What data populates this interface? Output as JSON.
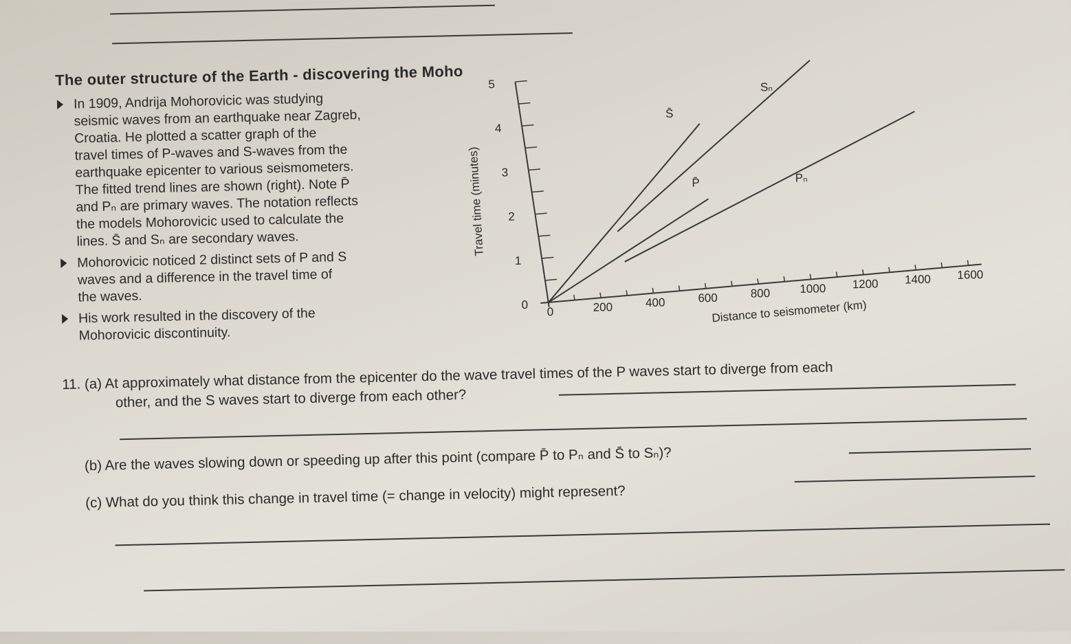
{
  "header_rules": 2,
  "title": "The outer structure of the Earth - discovering the Moho",
  "bullets": [
    {
      "lines": [
        "In 1909, Andrija Mohorovicic was studying",
        "seismic waves from an earthquake near Zagreb,",
        "Croatia. He plotted a scatter graph of the",
        "travel times of P-waves and S-waves from the",
        "earthquake epicenter to various seismometers.",
        "The fitted trend lines are shown (right). Note P̄",
        "and Pₙ are primary waves. The notation reflects",
        "the models Mohorovicic used to calculate the",
        "lines. S̄ and Sₙ are secondary waves."
      ]
    },
    {
      "lines": [
        "Mohorovicic noticed 2 distinct sets of P and S",
        "waves and a difference in the travel time of",
        "the waves."
      ]
    },
    {
      "lines": [
        "His work resulted in the discovery of the",
        "Mohorovicic discontinuity."
      ]
    }
  ],
  "questions": {
    "a_line1": "11. (a) At approximately what distance from the epicenter do the wave travel times of the P waves start to diverge from each",
    "a_line2": "other, and the S waves start to diverge from each other?",
    "b": "(b) Are the waves slowing down or speeding up after this point (compare P̄ to Pₙ and S̄ to Sₙ)?",
    "c": "(c) What do you think this change in travel time (= change in velocity) might represent?"
  },
  "chart_data": {
    "type": "line",
    "xlabel": "Distance to seismometer (km)",
    "ylabel": "Travel time (minutes)",
    "xlim": [
      0,
      1600
    ],
    "ylim": [
      0,
      5
    ],
    "xticks": [
      "0",
      "200",
      "400",
      "600",
      "800",
      "1000",
      "1200",
      "1400",
      "1600"
    ],
    "yticks": [
      "0",
      "1",
      "2",
      "3",
      "4",
      "5"
    ],
    "grid": false,
    "series": [
      {
        "name": "S̄",
        "points": [
          [
            0,
            0
          ],
          [
            670,
            3.7
          ]
        ]
      },
      {
        "name": "Sₙ",
        "points": [
          [
            300,
            1.45
          ],
          [
            1120,
            4.9
          ]
        ]
      },
      {
        "name": "P̄",
        "points": [
          [
            0,
            0
          ],
          [
            660,
            2.0
          ]
        ]
      },
      {
        "name": "Pₙ",
        "points": [
          [
            310,
            0.76
          ],
          [
            1485,
            3.55
          ]
        ]
      }
    ],
    "label_positions_data": [
      [
        560,
        3.9
      ],
      [
        940,
        4.3
      ],
      [
        620,
        2.3
      ],
      [
        1020,
        2.2
      ]
    ]
  }
}
